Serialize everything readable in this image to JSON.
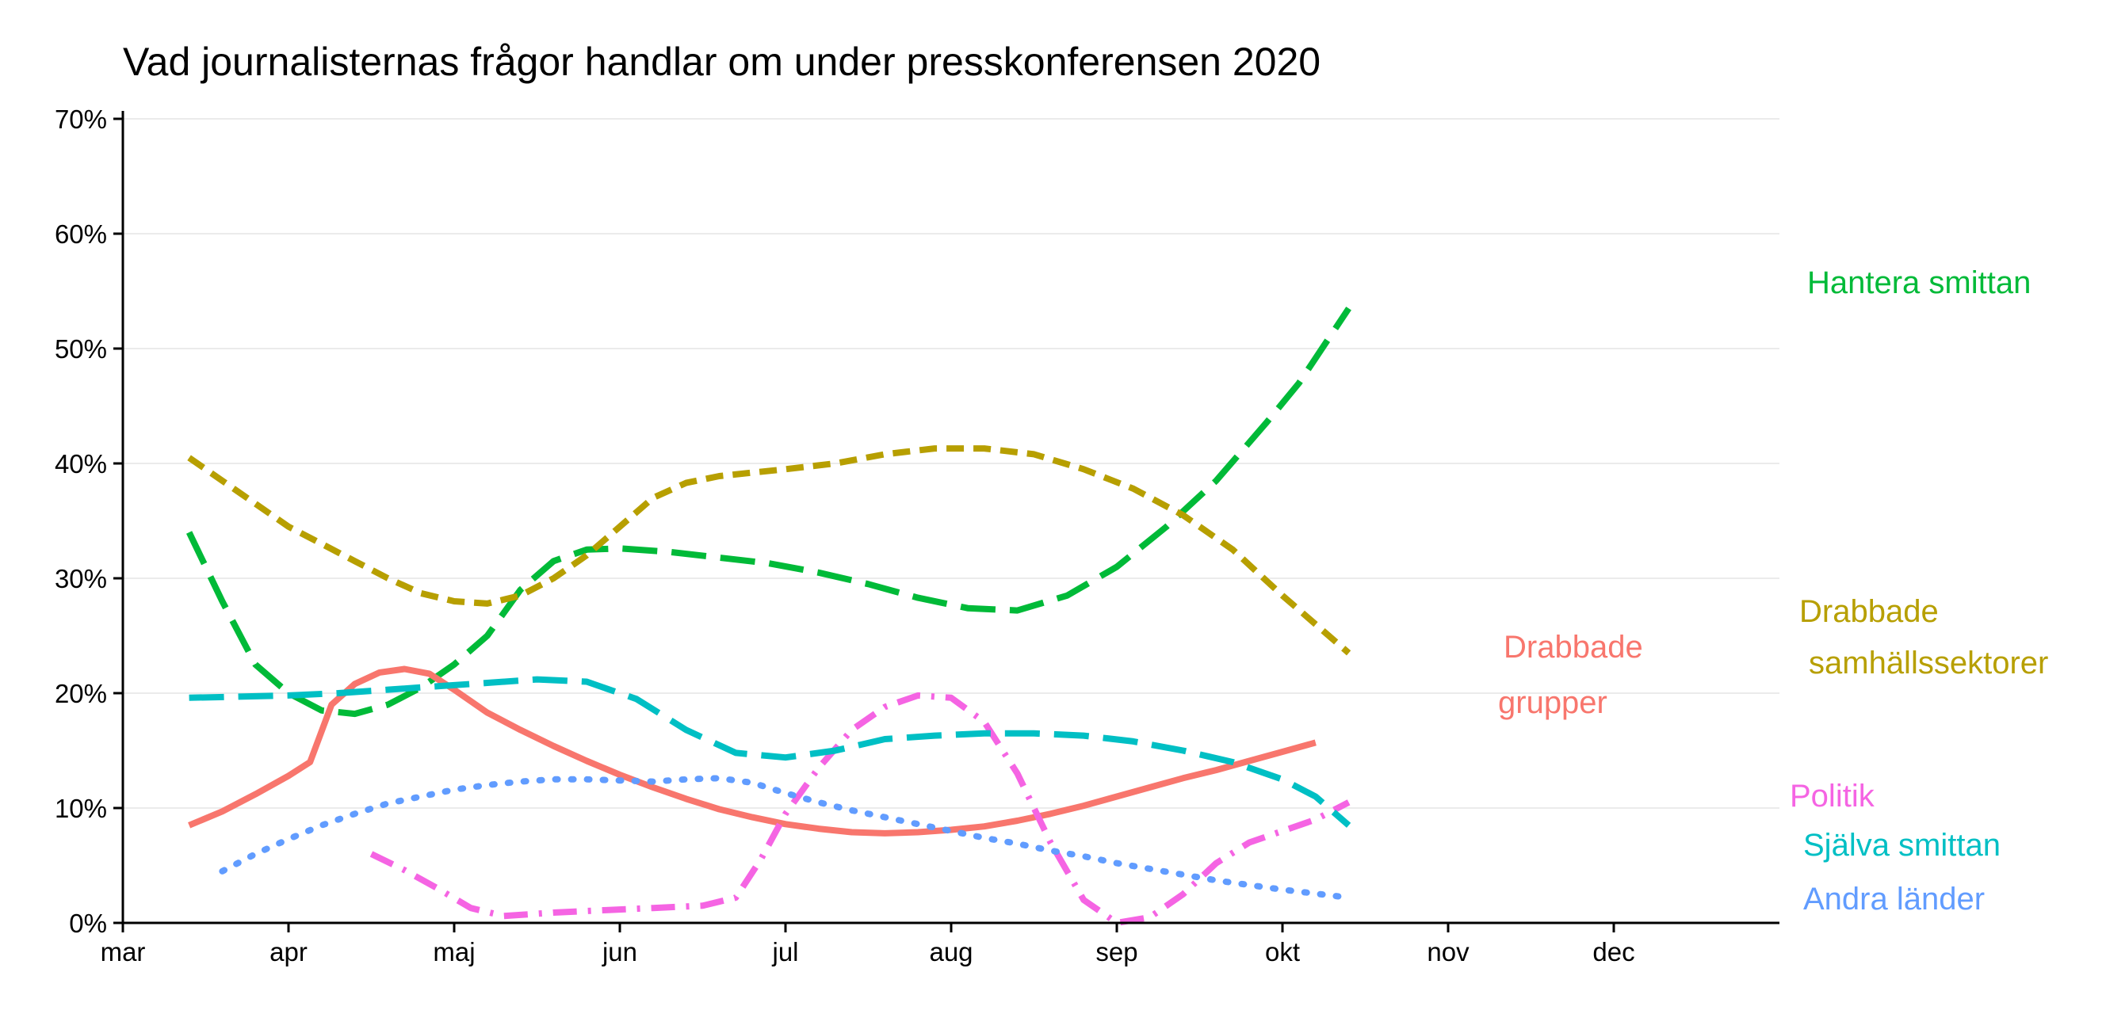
{
  "chart_data": {
    "type": "line",
    "title": "Vad journalisternas frågor handlar om under presskonferensen 2020",
    "xlabel": "",
    "ylabel": "",
    "x_ticks": [
      {
        "label": "mar",
        "month": 3.0
      },
      {
        "label": "apr",
        "month": 4.0
      },
      {
        "label": "maj",
        "month": 5.0
      },
      {
        "label": "jun",
        "month": 6.0
      },
      {
        "label": "jul",
        "month": 7.0
      },
      {
        "label": "aug",
        "month": 8.0
      },
      {
        "label": "sep",
        "month": 9.0
      },
      {
        "label": "okt",
        "month": 10.0
      },
      {
        "label": "nov",
        "month": 11.0
      },
      {
        "label": "dec",
        "month": 12.0
      }
    ],
    "xlim": [
      3.0,
      13.0
    ],
    "ylim": [
      0,
      70
    ],
    "y_ticks": [
      {
        "label": "0%",
        "value": 0
      },
      {
        "label": "10%",
        "value": 10
      },
      {
        "label": "20%",
        "value": 20
      },
      {
        "label": "30%",
        "value": 30
      },
      {
        "label": "40%",
        "value": 40
      },
      {
        "label": "50%",
        "value": 50
      },
      {
        "label": "60%",
        "value": 60
      },
      {
        "label": "70%",
        "value": 70
      }
    ],
    "grid": "horizontal",
    "legend": "direct labels at line ends",
    "series": [
      {
        "key": "hantera",
        "name": "Hantera smittan",
        "label_lines": [
          "Hantera smittan"
        ],
        "color": "#00BA38",
        "dash": "longdash",
        "points": [
          [
            3.4,
            34
          ],
          [
            3.6,
            28
          ],
          [
            3.8,
            22.5
          ],
          [
            4.0,
            20
          ],
          [
            4.2,
            18.5
          ],
          [
            4.4,
            18.2
          ],
          [
            4.6,
            19.0
          ],
          [
            4.8,
            20.5
          ],
          [
            5.0,
            22.5
          ],
          [
            5.2,
            25
          ],
          [
            5.4,
            29
          ],
          [
            5.6,
            31.5
          ],
          [
            5.8,
            32.5
          ],
          [
            6.0,
            32.6
          ],
          [
            6.3,
            32.3
          ],
          [
            6.6,
            31.8
          ],
          [
            6.9,
            31.3
          ],
          [
            7.2,
            30.5
          ],
          [
            7.5,
            29.5
          ],
          [
            7.8,
            28.3
          ],
          [
            8.1,
            27.4
          ],
          [
            8.4,
            27.2
          ],
          [
            8.7,
            28.5
          ],
          [
            9.0,
            31
          ],
          [
            9.3,
            34.5
          ],
          [
            9.6,
            38.5
          ],
          [
            9.9,
            43.5
          ],
          [
            10.1,
            47
          ],
          [
            10.4,
            53.5
          ]
        ]
      },
      {
        "key": "drabbade_sektorer",
        "name": "Drabbade samhällssektorer",
        "label_lines": [
          "Drabbade",
          "samhällssektorer"
        ],
        "color": "#B79F00",
        "dash": "dashed",
        "points": [
          [
            3.4,
            40.5
          ],
          [
            3.6,
            38.5
          ],
          [
            3.8,
            36.5
          ],
          [
            4.0,
            34.5
          ],
          [
            4.2,
            33.0
          ],
          [
            4.4,
            31.5
          ],
          [
            4.6,
            30.0
          ],
          [
            4.8,
            28.7
          ],
          [
            5.0,
            28.0
          ],
          [
            5.2,
            27.8
          ],
          [
            5.4,
            28.5
          ],
          [
            5.6,
            30.0
          ],
          [
            5.8,
            32.0
          ],
          [
            6.0,
            34.5
          ],
          [
            6.2,
            37.0
          ],
          [
            6.4,
            38.3
          ],
          [
            6.6,
            38.9
          ],
          [
            6.8,
            39.2
          ],
          [
            7.0,
            39.5
          ],
          [
            7.3,
            40.0
          ],
          [
            7.6,
            40.8
          ],
          [
            7.9,
            41.3
          ],
          [
            8.2,
            41.3
          ],
          [
            8.5,
            40.8
          ],
          [
            8.8,
            39.5
          ],
          [
            9.1,
            37.8
          ],
          [
            9.4,
            35.5
          ],
          [
            9.7,
            32.5
          ],
          [
            10.0,
            28.5
          ],
          [
            10.4,
            23.5
          ]
        ]
      },
      {
        "key": "drabbade_grupper",
        "name": "Drabbade grupper",
        "label_lines": [
          "Drabbade",
          "grupper"
        ],
        "color": "#F8766D",
        "dash": "solid",
        "points": [
          [
            3.4,
            8.5
          ],
          [
            3.6,
            9.7
          ],
          [
            3.8,
            11.2
          ],
          [
            4.0,
            12.8
          ],
          [
            4.13,
            14.0
          ],
          [
            4.26,
            19.0
          ],
          [
            4.4,
            20.8
          ],
          [
            4.55,
            21.8
          ],
          [
            4.7,
            22.1
          ],
          [
            4.85,
            21.7
          ],
          [
            5.0,
            20.3
          ],
          [
            5.2,
            18.3
          ],
          [
            5.4,
            16.8
          ],
          [
            5.6,
            15.4
          ],
          [
            5.8,
            14.1
          ],
          [
            6.0,
            12.9
          ],
          [
            6.2,
            11.8
          ],
          [
            6.4,
            10.8
          ],
          [
            6.6,
            9.9
          ],
          [
            6.8,
            9.2
          ],
          [
            7.0,
            8.6
          ],
          [
            7.2,
            8.2
          ],
          [
            7.4,
            7.9
          ],
          [
            7.6,
            7.8
          ],
          [
            7.8,
            7.9
          ],
          [
            8.0,
            8.1
          ],
          [
            8.2,
            8.4
          ],
          [
            8.4,
            8.9
          ],
          [
            8.6,
            9.5
          ],
          [
            8.8,
            10.2
          ],
          [
            9.0,
            11.0
          ],
          [
            9.2,
            11.8
          ],
          [
            9.4,
            12.6
          ],
          [
            9.6,
            13.3
          ],
          [
            9.8,
            14.1
          ],
          [
            10.0,
            14.9
          ],
          [
            10.2,
            15.7
          ]
        ]
      },
      {
        "key": "politik",
        "name": "Politik",
        "label_lines": [
          "Politik"
        ],
        "color": "#F564E3",
        "dash": "dotdash",
        "points": [
          [
            4.5,
            6.0
          ],
          [
            4.7,
            4.6
          ],
          [
            4.9,
            3.0
          ],
          [
            5.1,
            1.3
          ],
          [
            5.3,
            0.6
          ],
          [
            5.6,
            0.9
          ],
          [
            5.9,
            1.1
          ],
          [
            6.2,
            1.3
          ],
          [
            6.5,
            1.5
          ],
          [
            6.7,
            2.2
          ],
          [
            6.85,
            5.5
          ],
          [
            7.0,
            9.5
          ],
          [
            7.2,
            13.5
          ],
          [
            7.4,
            16.8
          ],
          [
            7.6,
            18.8
          ],
          [
            7.8,
            19.8
          ],
          [
            8.0,
            19.6
          ],
          [
            8.2,
            17.5
          ],
          [
            8.4,
            13.0
          ],
          [
            8.6,
            7.0
          ],
          [
            8.8,
            2.0
          ],
          [
            9.0,
            0.0
          ],
          [
            9.2,
            0.5
          ],
          [
            9.4,
            2.5
          ],
          [
            9.6,
            5.2
          ],
          [
            9.8,
            7.0
          ],
          [
            10.0,
            8.0
          ],
          [
            10.2,
            9.0
          ],
          [
            10.4,
            10.5
          ]
        ]
      },
      {
        "key": "sjalva",
        "name": "Själva smittan",
        "label_lines": [
          "Själva smittan"
        ],
        "color": "#00BFC4",
        "dash": "longdash",
        "points": [
          [
            3.4,
            19.6
          ],
          [
            3.7,
            19.7
          ],
          [
            4.0,
            19.8
          ],
          [
            4.3,
            20.0
          ],
          [
            4.6,
            20.3
          ],
          [
            4.9,
            20.6
          ],
          [
            5.2,
            20.9
          ],
          [
            5.5,
            21.2
          ],
          [
            5.8,
            21.0
          ],
          [
            6.1,
            19.5
          ],
          [
            6.4,
            16.8
          ],
          [
            6.7,
            14.8
          ],
          [
            7.0,
            14.4
          ],
          [
            7.3,
            15.0
          ],
          [
            7.6,
            16.0
          ],
          [
            7.9,
            16.3
          ],
          [
            8.2,
            16.5
          ],
          [
            8.5,
            16.5
          ],
          [
            8.8,
            16.3
          ],
          [
            9.1,
            15.8
          ],
          [
            9.4,
            15.0
          ],
          [
            9.7,
            14.0
          ],
          [
            10.0,
            12.5
          ],
          [
            10.2,
            11.0
          ],
          [
            10.4,
            8.5
          ]
        ]
      },
      {
        "key": "andra",
        "name": "Andra länder",
        "label_lines": [
          "Andra länder"
        ],
        "color": "#619CFF",
        "dash": "dotted",
        "points": [
          [
            3.6,
            4.5
          ],
          [
            3.8,
            6.0
          ],
          [
            4.0,
            7.3
          ],
          [
            4.2,
            8.5
          ],
          [
            4.4,
            9.5
          ],
          [
            4.6,
            10.4
          ],
          [
            4.8,
            11.0
          ],
          [
            5.0,
            11.6
          ],
          [
            5.2,
            12.0
          ],
          [
            5.4,
            12.3
          ],
          [
            5.6,
            12.5
          ],
          [
            5.8,
            12.5
          ],
          [
            6.0,
            12.4
          ],
          [
            6.2,
            12.3
          ],
          [
            6.4,
            12.5
          ],
          [
            6.6,
            12.6
          ],
          [
            6.8,
            12.2
          ],
          [
            7.0,
            11.3
          ],
          [
            7.2,
            10.5
          ],
          [
            7.4,
            9.8
          ],
          [
            7.6,
            9.2
          ],
          [
            7.8,
            8.6
          ],
          [
            8.0,
            8.0
          ],
          [
            8.2,
            7.4
          ],
          [
            8.4,
            6.9
          ],
          [
            8.6,
            6.3
          ],
          [
            8.8,
            5.8
          ],
          [
            9.0,
            5.2
          ],
          [
            9.2,
            4.7
          ],
          [
            9.4,
            4.2
          ],
          [
            9.6,
            3.7
          ],
          [
            9.8,
            3.3
          ],
          [
            10.0,
            2.9
          ],
          [
            10.4,
            2.2
          ]
        ]
      }
    ]
  }
}
